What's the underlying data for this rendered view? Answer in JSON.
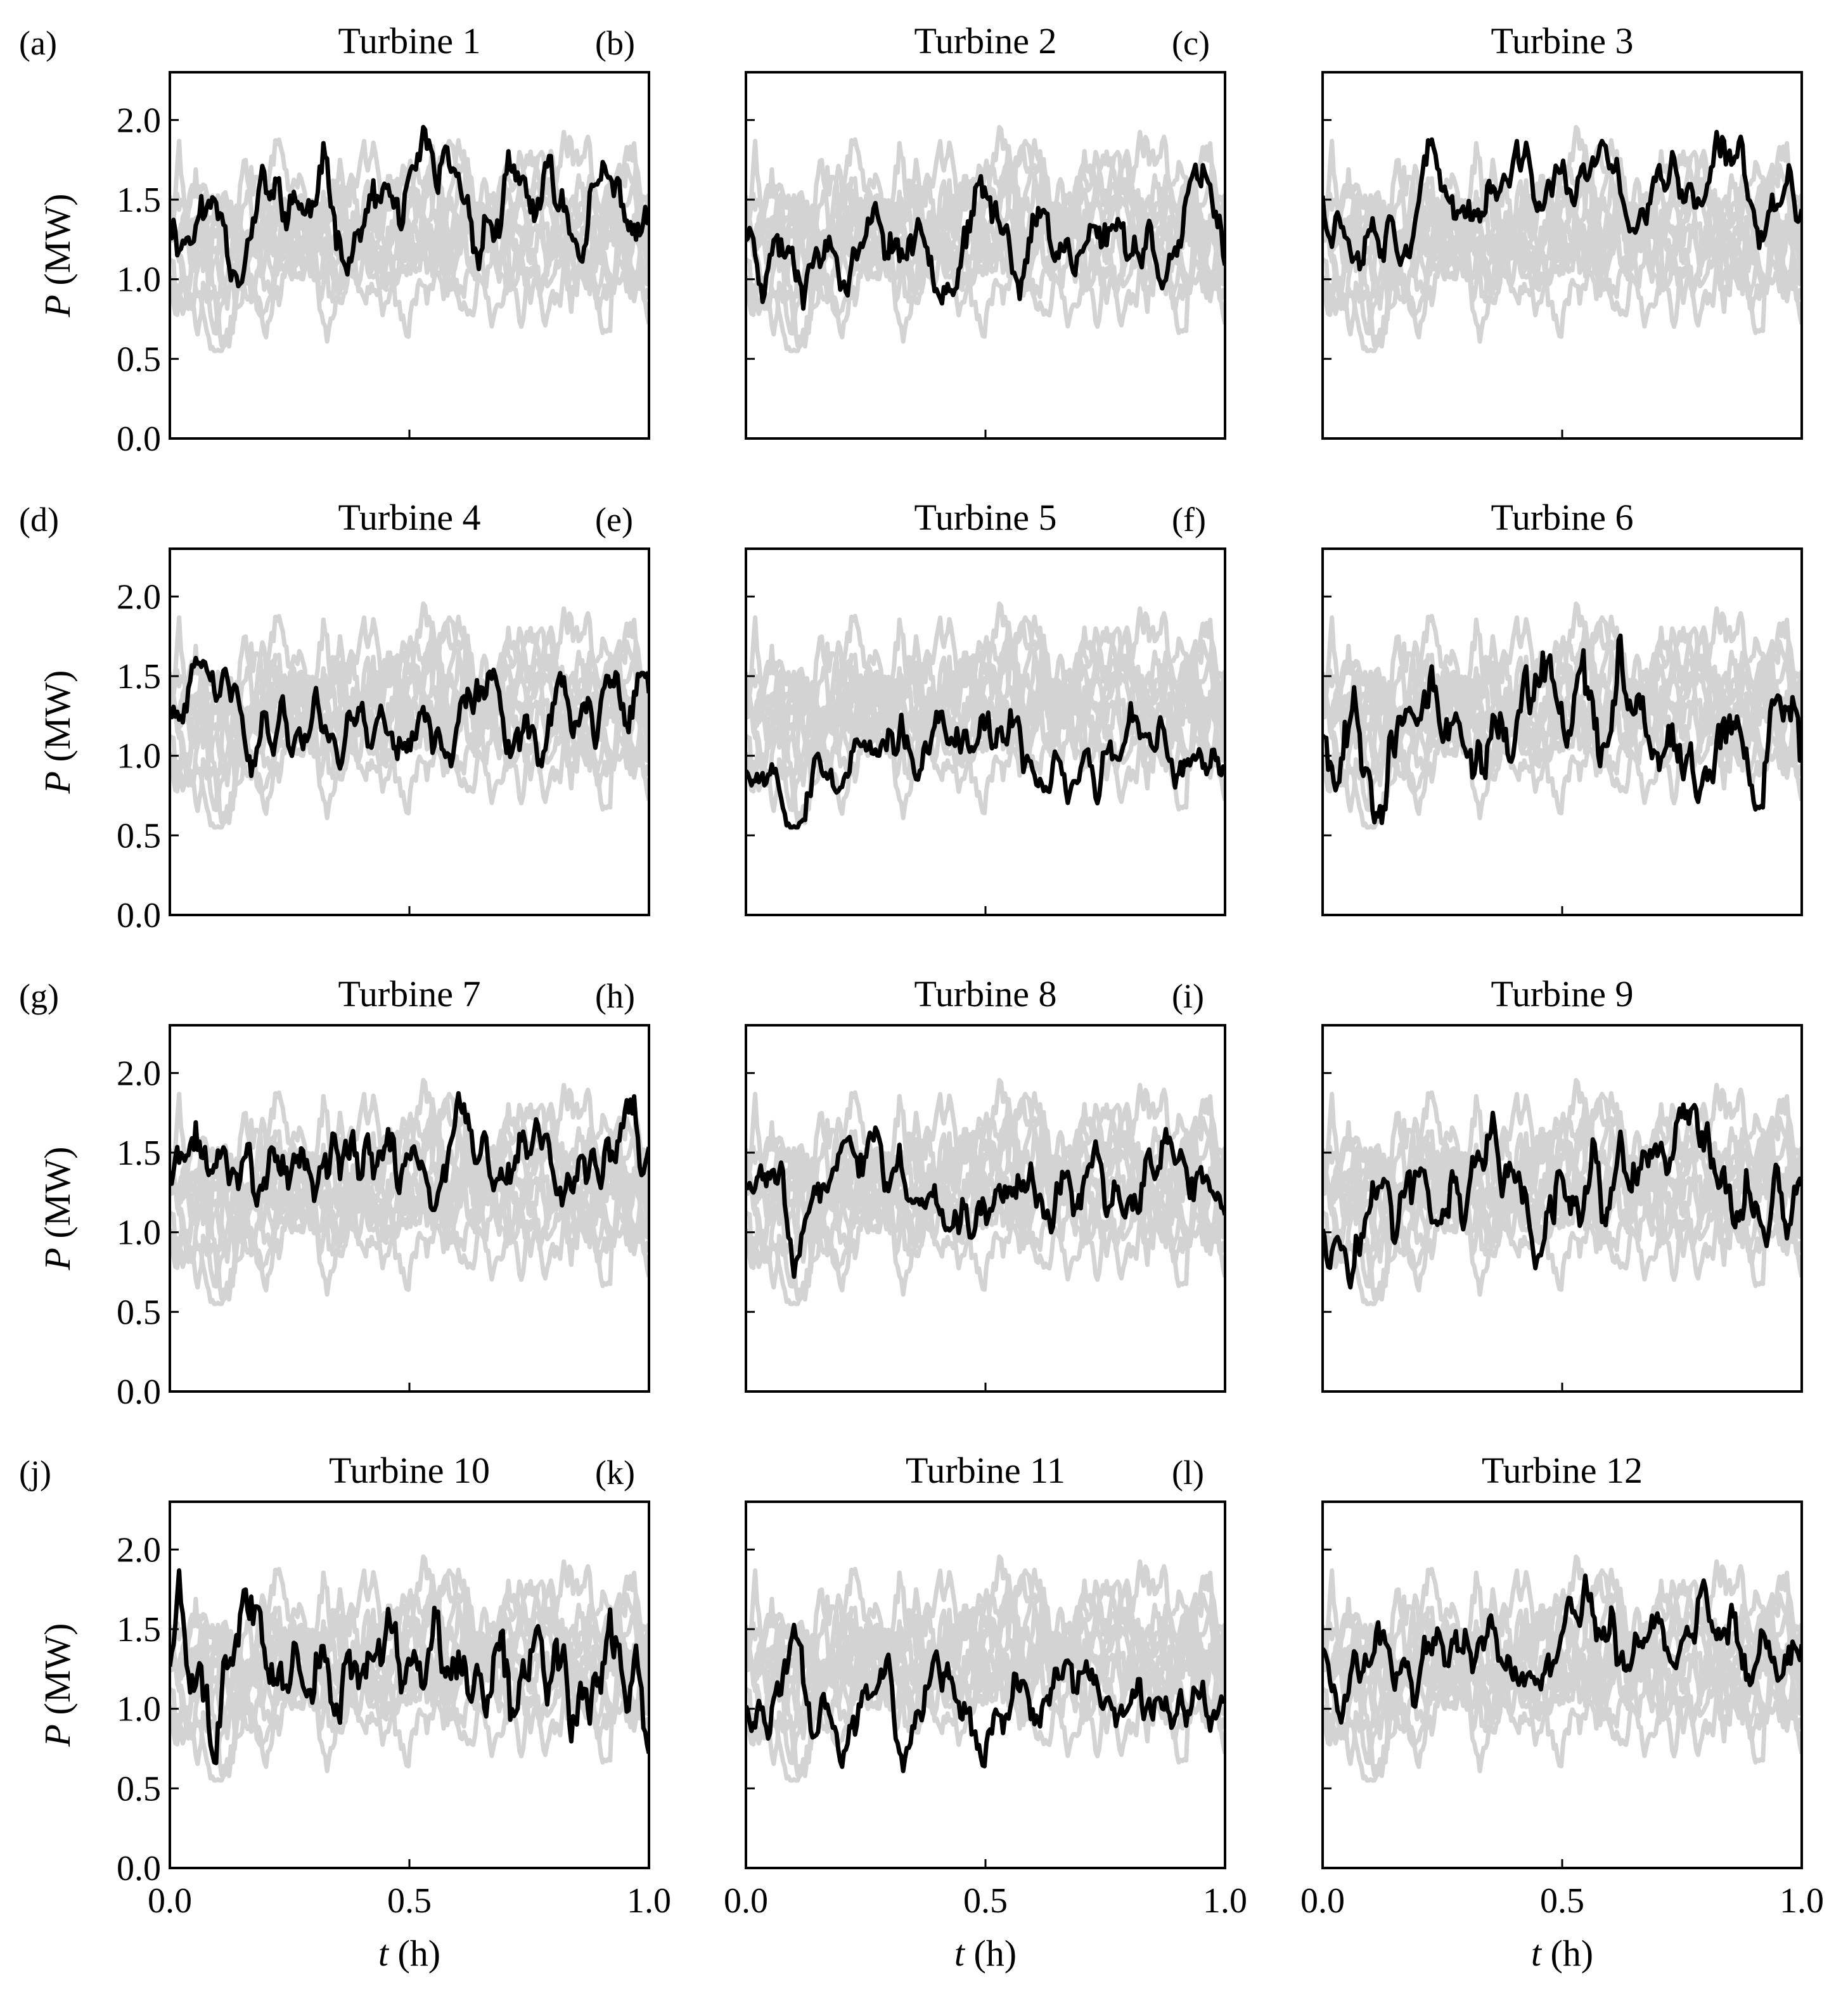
{
  "figure": {
    "rows": 4,
    "cols": 3
  },
  "chart_data": [
    {
      "type": "line",
      "letter": "(a)",
      "title": "Turbine 1",
      "mean": 1.4,
      "amp": 0.2,
      "seed": 11
    },
    {
      "type": "line",
      "letter": "(b)",
      "title": "Turbine 2",
      "mean": 1.3,
      "amp": 0.18,
      "seed": 23
    },
    {
      "type": "line",
      "letter": "(c)",
      "title": "Turbine 3",
      "mean": 1.55,
      "amp": 0.18,
      "seed": 37
    },
    {
      "type": "line",
      "letter": "(d)",
      "title": "Turbine 4",
      "mean": 1.27,
      "amp": 0.18,
      "seed": 41
    },
    {
      "type": "line",
      "letter": "(e)",
      "title": "Turbine 5",
      "mean": 0.98,
      "amp": 0.16,
      "seed": 53
    },
    {
      "type": "line",
      "letter": "(f)",
      "title": "Turbine 6",
      "mean": 1.2,
      "amp": 0.25,
      "seed": 67
    },
    {
      "type": "line",
      "letter": "(g)",
      "title": "Turbine 7",
      "mean": 1.4,
      "amp": 0.2,
      "seed": 71
    },
    {
      "type": "line",
      "letter": "(h)",
      "title": "Turbine 8",
      "mean": 1.28,
      "amp": 0.18,
      "seed": 83
    },
    {
      "type": "line",
      "letter": "(i)",
      "title": "Turbine 9",
      "mean": 1.12,
      "amp": 0.22,
      "seed": 97
    },
    {
      "type": "line",
      "letter": "(j)",
      "title": "Turbine 10",
      "mean": 1.33,
      "amp": 0.28,
      "seed": 101
    },
    {
      "type": "line",
      "letter": "(k)",
      "title": "Turbine 11",
      "mean": 1.05,
      "amp": 0.18,
      "seed": 113
    },
    {
      "type": "line",
      "letter": "(l)",
      "title": "Turbine 12",
      "mean": 1.38,
      "amp": 0.18,
      "seed": 127
    }
  ],
  "axes": {
    "xlabel_var": "t",
    "xlabel_unit": " (h)",
    "ylabel_var": "P",
    "ylabel_unit": " (MW)",
    "xlim": [
      0.0,
      1.0
    ],
    "ylim": [
      0.0,
      2.3
    ],
    "xticks": [
      "0.0",
      "0.5",
      "1.0"
    ],
    "xtick_values": [
      0.0,
      0.5,
      1.0
    ],
    "yticks": [
      "0.0",
      "0.5",
      "1.0",
      "1.5",
      "2.0"
    ],
    "ytick_values": [
      0.0,
      0.5,
      1.0,
      1.5,
      2.0
    ]
  },
  "colors": {
    "highlight": "#000000",
    "others": "#d3d3d3"
  }
}
